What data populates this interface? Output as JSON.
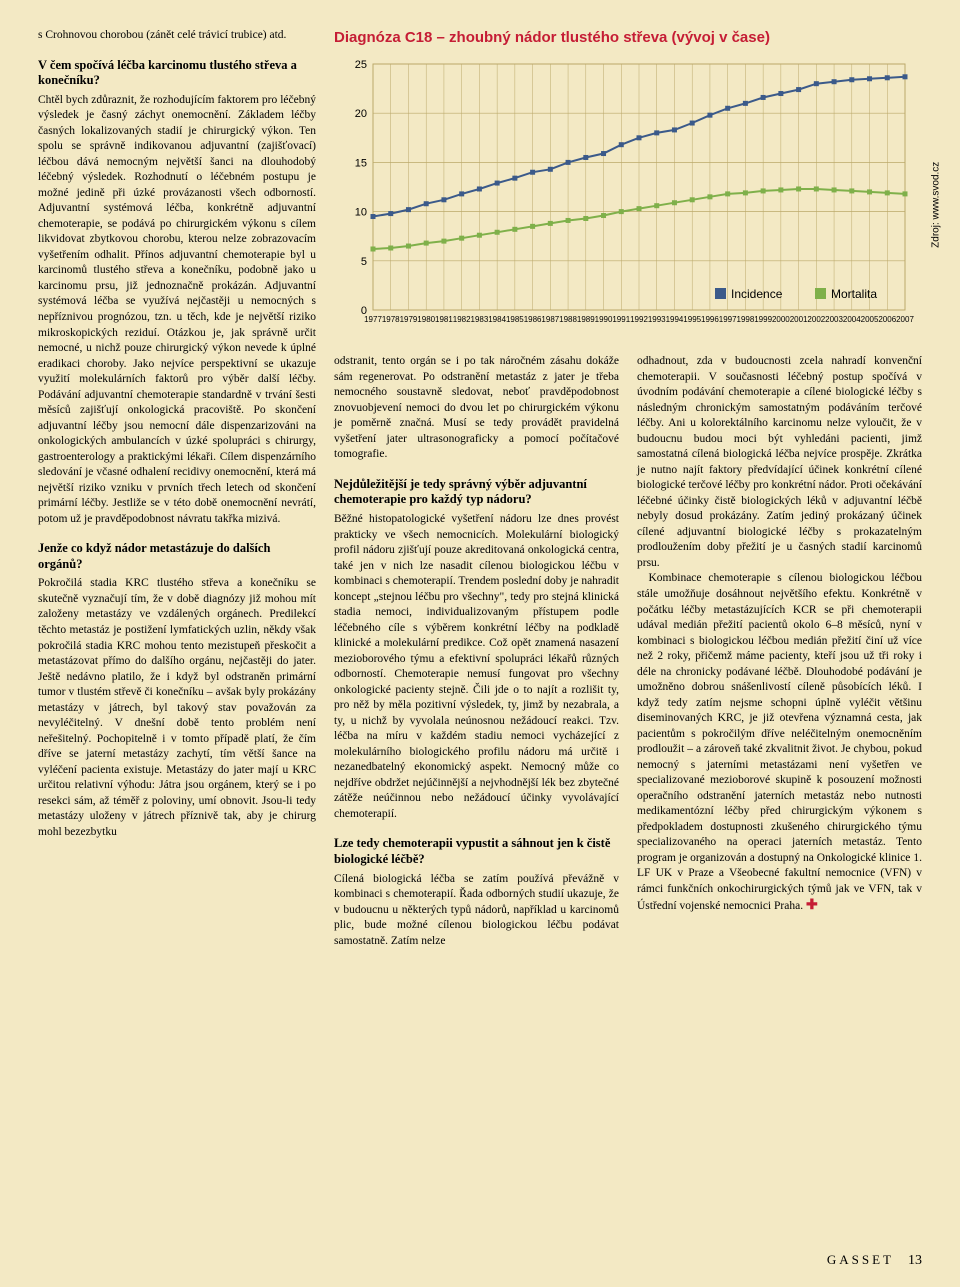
{
  "col1": {
    "p_intro": "s Crohnovou chorobou (zánět celé trávicí trubice) atd.",
    "h1": "V čem spočívá léčba karcinomu tlustého střeva a konečníku?",
    "p1": "Chtěl bych zdůraznit, že rozhodujícím faktorem pro léčebný výsledek je časný záchyt onemocnění. Základem léčby časných lokalizovaných stadií je chirurgický výkon. Ten spolu se správně indikovanou adjuvantní (zajišťovací) léčbou dává nemocným největší šanci na dlouhodobý léčebný výsledek. Rozhodnutí o léčebném postupu je možné jedině při úzké provázanosti všech odborností. Adjuvantní systémová léčba, konkrétně adjuvantní chemoterapie, se podává po chirurgickém výkonu s cílem likvidovat zbytkovou chorobu, kterou nelze zobrazovacím vyšetřením odhalit. Přínos adjuvantní chemoterapie byl u karcinomů tlustého střeva a konečníku, podobně jako u karcinomu prsu, již jednoznačně prokázán. Adjuvantní systémová léčba se využívá nejčastěji u nemocných s nepříznivou prognózou, tzn. u těch, kde je největší riziko mikroskopických reziduí. Otázkou je, jak správně určit nemocné, u nichž pouze chirurgický výkon nevede k úplné eradikaci choroby. Jako nejvíce perspektivní se ukazuje využití molekulárních faktorů pro výběr další léčby. Podávání adjuvantní chemoterapie standardně v trvání šesti měsíců zajišťují onkologická pracoviště. Po skončení adjuvantní léčby jsou nemocní dále dispenzarizováni na onkologických ambulancích v úzké spolupráci s chirurgy, gastroenterology a praktickými lékaři. Cílem dispenzárního sledování je včasné odhalení recidivy onemocnění, která má největší riziko vzniku v prvních třech letech od skončení primární léčby. Jestliže se v této době onemocnění nevrátí, potom už je pravděpodobnost návratu takřka mizivá.",
    "h2": "Jenže co když nádor metastázuje do dalších orgánů?",
    "p2": "Pokročilá stadia KRC tlustého střeva a konečníku se skutečně vyznačují tím, že v době diagnózy již mohou mít založeny metastázy ve vzdálených orgánech. Predilekcí těchto metastáz je postižení lymfatických uzlin, někdy však pokročilá stadia KRC mohou tento mezistupeň přeskočit a metastázovat přímo do dalšího orgánu, nejčastěji do jater. Ještě nedávno platilo, že i když byl odstraněn primární tumor v tlustém střevě či konečníku – avšak byly prokázány metastázy v játrech, byl takový stav považován za nevyléčitelný. V dnešní době tento problém není neřešitelný. Pochopitelně i v tomto případě platí, že čím dříve se jaterní metastázy zachytí, tím větší šance na vyléčení pacienta existuje. Metastázy do jater mají u KRC určitou relativní výhodu: Játra jsou orgánem, který se i po resekci sám, až téměř z poloviny, umí obnovit. Jsou-li tedy metastázy uloženy v játrech příznivě tak, aby je chirurg mohl bezezbytku"
  },
  "col2": {
    "p1": "odstranit, tento orgán se i po tak náročném zásahu dokáže sám regenerovat. Po odstranění metastáz z jater je třeba nemocného soustavně sledovat, neboť pravděpodobnost znovuobjevení nemoci do dvou let po chirurgickém výkonu je poměrně značná. Musí se tedy provádět pravidelná vyšetření jater ultrasonograficky a pomocí počítačové tomografie.",
    "h1": "Nejdůležitější je tedy správný výběr adjuvantní chemoterapie pro každý typ nádoru?",
    "p2": "Běžné histopatologické vyšetření nádoru lze dnes provést prakticky ve všech nemocnicích. Molekulární biologický profil nádoru zjišťují pouze akreditovaná onkologická centra, také jen v nich lze nasadit cílenou biologickou léčbu v kombinaci s chemoterapií. Trendem poslední doby je nahradit koncept „stejnou léčbu pro všechny\", tedy pro stejná klinická stadia nemoci, individualizovaným přístupem podle léčebného cíle s výběrem konkrétní léčby na podkladě klinické a molekulární predikce. Což opět znamená nasazení mezioborového týmu a efektivní spolupráci lékařů různých odborností. Chemoterapie nemusí fungovat pro všechny onkologické pacienty stejně. Čili jde o to najít a rozlišit ty, pro něž by měla pozitivní výsledek, ty, jimž by nezabrala, a ty, u nichž by vyvolala neúnosnou nežádoucí reakci. Tzv. léčba na míru v každém stadiu nemoci vycházející z molekulárního biologického profilu nádoru má určitě i nezanedbatelný ekonomický aspekt. Nemocný může co nejdříve obdržet nejúčinnější a nejvhodnější lék bez zbytečné zátěže neúčinnou nebo nežádoucí účinky vyvolávající chemoterapií.",
    "h2": "Lze tedy chemoterapii vypustit a sáhnout jen k čistě biologické léčbě?",
    "p3": "Cílená biologická léčba se zatím používá převážně v kombinaci s chemoterapií. Řada odborných studií ukazuje, že v budoucnu u některých typů nádorů, například u karcinomů plic, bude možné cílenou biologickou léčbu podávat samostatně. Zatím nelze"
  },
  "col3": {
    "p1": "odhadnout, zda v budoucnosti zcela nahradí konvenční chemoterapii. V současnosti léčebný postup spočívá v úvodním podávání chemoterapie a cílené biologické léčby s následným chronickým samostatným podáváním terčové léčby. Ani u kolorektálního karcinomu nelze vyloučit, že v budoucnu budou moci být vyhledáni pacienti, jimž samostatná cílená biologická léčba nejvíce prospěje. Zkrátka je nutno najít faktory předvídající účinek konkrétní cílené biologické terčové léčby pro konkrétní nádor. Proti očekávání léčebné účinky čistě biologických léků v adjuvantní léčbě nebyly dosud prokázány. Zatím jediný prokázaný účinek cílené adjuvantní biologické léčby s prokazatelným prodloužením doby přežití je u časných stadií karcinomů prsu.",
    "p2": "Kombinace chemoterapie s cílenou biologickou léčbou stále umožňuje dosáhnout největšího efektu. Konkrétně v počátku léčby metastázujících KCR se při chemoterapii udával medián přežití pacientů okolo 6–8 měsíců, nyní v kombinaci s biologickou léčbou medián přežití činí už více než 2 roky, přičemž máme pacienty, kteří jsou už tři roky i déle na chronicky podávané léčbě. Dlouhodobé podávání je umožněno dobrou snášenlivostí cíleně působících léků. I když tedy zatím nejsme schopni úplně vyléčit většinu diseminovaných KRC, je již otevřena významná cesta, jak pacientům s pokročilým dříve neléčitelným onemocněním prodloužit – a zároveň také zkvalitnit život. Je chybou, pokud nemocný s jaterními metastázami není vyšetřen ve specializované mezioborové skupině k posouzení možnosti operačního odstranění jaterních metastáz nebo nutnosti medikamentózní léčby před chirurgickým výkonem s předpokladem dostupnosti zkušeného chirurgického týmu specializovaného na operaci jaterních metastáz. Tento program je organizován a dostupný na Onkologické klinice 1. LF UK v Praze a Všeobecné fakultní nemocnice (VFN) v rámci funkčních onkochirurgických týmů jak ve VFN, tak v Ústřední vojenské nemocnici Praha."
  },
  "chart": {
    "title": "Diagnóza C18 – zhoubný nádor tlustého střeva (vývoj v čase)",
    "source": "Zdroj: www.svod.cz",
    "yticks": [
      0,
      5,
      10,
      15,
      20,
      25
    ],
    "years": [
      1977,
      1978,
      1979,
      1980,
      1981,
      1982,
      1983,
      1984,
      1985,
      1986,
      1987,
      1988,
      1989,
      1990,
      1991,
      1992,
      1993,
      1994,
      1995,
      1996,
      1997,
      1998,
      1999,
      2000,
      2001,
      2002,
      2003,
      2004,
      2005,
      2006,
      2007
    ],
    "incidence": [
      9.5,
      9.8,
      10.2,
      10.8,
      11.2,
      11.8,
      12.3,
      12.9,
      13.4,
      14.0,
      14.3,
      15.0,
      15.5,
      15.9,
      16.8,
      17.5,
      18.0,
      18.3,
      19.0,
      19.8,
      20.5,
      21.0,
      21.6,
      22.0,
      22.4,
      23.0,
      23.2,
      23.4,
      23.5,
      23.6,
      23.7
    ],
    "mortalita": [
      6.2,
      6.3,
      6.5,
      6.8,
      7.0,
      7.3,
      7.6,
      7.9,
      8.2,
      8.5,
      8.8,
      9.1,
      9.3,
      9.6,
      10.0,
      10.3,
      10.6,
      10.9,
      11.2,
      11.5,
      11.8,
      11.9,
      12.1,
      12.2,
      12.3,
      12.3,
      12.2,
      12.1,
      12.0,
      11.9,
      11.8
    ],
    "colors": {
      "incidence": "#3b5a8a",
      "mortalita": "#7fb04a",
      "grid": "#bba96a",
      "plot_bg": "#f3e9c4"
    },
    "legend": {
      "incidence": "Incidence",
      "mortalita": "Mortalita"
    }
  },
  "footer": {
    "mag": "GASSET",
    "page": "13"
  }
}
